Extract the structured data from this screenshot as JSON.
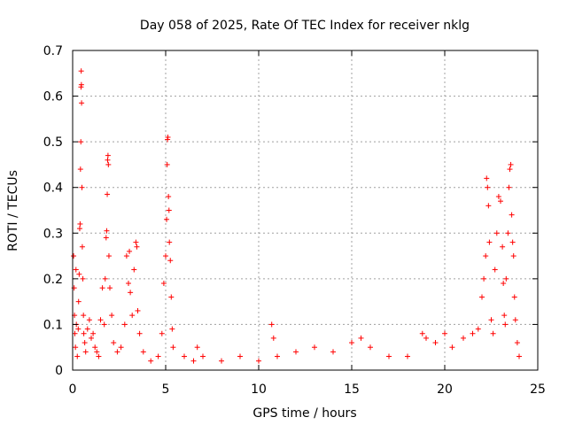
{
  "chart_data": {
    "type": "scatter",
    "title": "Day 058 of 2025, Rate Of TEC Index for receiver nklg",
    "xlabel": "GPS time / hours",
    "ylabel": "ROTI / TECUs",
    "xlim": [
      0,
      25
    ],
    "ylim": [
      0,
      0.7
    ],
    "xticks": [
      "0",
      "5",
      "10",
      "15",
      "20",
      "25"
    ],
    "yticks": [
      "0",
      "0.1",
      "0.2",
      "0.3",
      "0.4",
      "0.5",
      "0.6",
      "0.7"
    ],
    "grid": true,
    "marker": "+",
    "color": "#ff0000",
    "series": [
      {
        "points": [
          [
            0.05,
            0.25
          ],
          [
            0.08,
            0.18
          ],
          [
            0.1,
            0.12
          ],
          [
            0.12,
            0.08
          ],
          [
            0.15,
            0.05
          ],
          [
            0.18,
            0.22
          ],
          [
            0.2,
            0.1
          ],
          [
            0.25,
            0.03
          ],
          [
            0.3,
            0.09
          ],
          [
            0.32,
            0.15
          ],
          [
            0.35,
            0.21
          ],
          [
            0.38,
            0.31
          ],
          [
            0.4,
            0.32
          ],
          [
            0.42,
            0.44
          ],
          [
            0.44,
            0.5
          ],
          [
            0.45,
            0.62
          ],
          [
            0.46,
            0.655
          ],
          [
            0.47,
            0.625
          ],
          [
            0.48,
            0.585
          ],
          [
            0.5,
            0.4
          ],
          [
            0.52,
            0.27
          ],
          [
            0.55,
            0.2
          ],
          [
            0.58,
            0.12
          ],
          [
            0.6,
            0.08
          ],
          [
            0.65,
            0.06
          ],
          [
            0.7,
            0.04
          ],
          [
            0.8,
            0.09
          ],
          [
            0.9,
            0.11
          ],
          [
            1.0,
            0.07
          ],
          [
            1.1,
            0.08
          ],
          [
            1.2,
            0.05
          ],
          [
            1.3,
            0.04
          ],
          [
            1.4,
            0.03
          ],
          [
            1.5,
            0.11
          ],
          [
            1.6,
            0.18
          ],
          [
            1.7,
            0.1
          ],
          [
            1.75,
            0.2
          ],
          [
            1.8,
            0.29
          ],
          [
            1.83,
            0.305
          ],
          [
            1.86,
            0.385
          ],
          [
            1.88,
            0.46
          ],
          [
            1.9,
            0.47
          ],
          [
            1.92,
            0.45
          ],
          [
            1.95,
            0.25
          ],
          [
            2.0,
            0.18
          ],
          [
            2.1,
            0.12
          ],
          [
            2.2,
            0.06
          ],
          [
            2.4,
            0.04
          ],
          [
            2.6,
            0.05
          ],
          [
            2.8,
            0.1
          ],
          [
            2.9,
            0.25
          ],
          [
            3.0,
            0.19
          ],
          [
            3.05,
            0.26
          ],
          [
            3.1,
            0.17
          ],
          [
            3.2,
            0.12
          ],
          [
            3.3,
            0.22
          ],
          [
            3.4,
            0.28
          ],
          [
            3.45,
            0.27
          ],
          [
            3.5,
            0.13
          ],
          [
            3.6,
            0.08
          ],
          [
            3.8,
            0.04
          ],
          [
            4.2,
            0.02
          ],
          [
            4.6,
            0.03
          ],
          [
            4.8,
            0.08
          ],
          [
            4.9,
            0.19
          ],
          [
            5.0,
            0.25
          ],
          [
            5.05,
            0.33
          ],
          [
            5.08,
            0.45
          ],
          [
            5.1,
            0.505
          ],
          [
            5.12,
            0.51
          ],
          [
            5.15,
            0.38
          ],
          [
            5.18,
            0.35
          ],
          [
            5.2,
            0.28
          ],
          [
            5.25,
            0.24
          ],
          [
            5.3,
            0.16
          ],
          [
            5.35,
            0.09
          ],
          [
            5.4,
            0.05
          ],
          [
            6.0,
            0.03
          ],
          [
            6.5,
            0.02
          ],
          [
            6.7,
            0.05
          ],
          [
            7.0,
            0.03
          ],
          [
            8.0,
            0.02
          ],
          [
            9.0,
            0.03
          ],
          [
            10.0,
            0.02
          ],
          [
            10.7,
            0.1
          ],
          [
            10.8,
            0.07
          ],
          [
            11.0,
            0.03
          ],
          [
            12.0,
            0.04
          ],
          [
            13.0,
            0.05
          ],
          [
            14.0,
            0.04
          ],
          [
            15.0,
            0.06
          ],
          [
            15.5,
            0.07
          ],
          [
            16.0,
            0.05
          ],
          [
            17.0,
            0.03
          ],
          [
            18.0,
            0.03
          ],
          [
            18.8,
            0.08
          ],
          [
            19.0,
            0.07
          ],
          [
            19.5,
            0.06
          ],
          [
            20.0,
            0.08
          ],
          [
            20.4,
            0.05
          ],
          [
            21.0,
            0.07
          ],
          [
            21.5,
            0.08
          ],
          [
            21.8,
            0.09
          ],
          [
            22.0,
            0.16
          ],
          [
            22.1,
            0.2
          ],
          [
            22.2,
            0.25
          ],
          [
            22.25,
            0.42
          ],
          [
            22.3,
            0.4
          ],
          [
            22.35,
            0.36
          ],
          [
            22.4,
            0.28
          ],
          [
            22.5,
            0.11
          ],
          [
            22.6,
            0.08
          ],
          [
            22.7,
            0.22
          ],
          [
            22.8,
            0.3
          ],
          [
            22.9,
            0.38
          ],
          [
            23.0,
            0.37
          ],
          [
            23.1,
            0.27
          ],
          [
            23.15,
            0.19
          ],
          [
            23.2,
            0.12
          ],
          [
            23.25,
            0.1
          ],
          [
            23.3,
            0.2
          ],
          [
            23.4,
            0.3
          ],
          [
            23.45,
            0.4
          ],
          [
            23.5,
            0.44
          ],
          [
            23.55,
            0.45
          ],
          [
            23.6,
            0.34
          ],
          [
            23.65,
            0.28
          ],
          [
            23.7,
            0.25
          ],
          [
            23.75,
            0.16
          ],
          [
            23.8,
            0.11
          ],
          [
            23.9,
            0.06
          ],
          [
            24.0,
            0.03
          ]
        ]
      }
    ]
  }
}
